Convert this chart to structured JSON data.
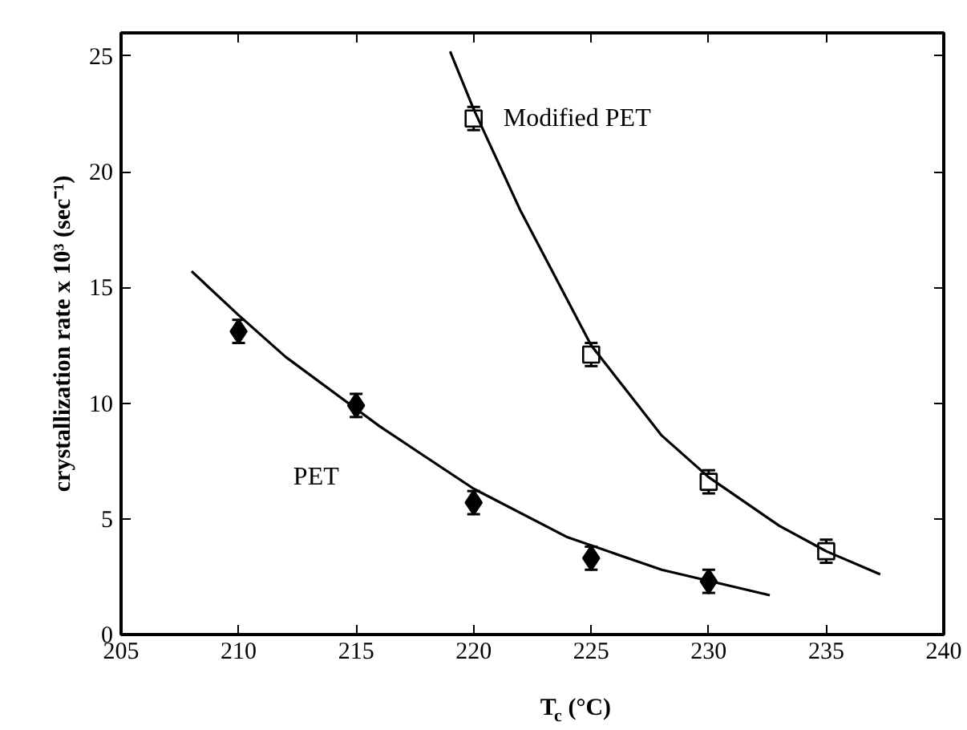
{
  "chart_data": {
    "type": "scatter",
    "xlabel": "T$_{c}$ (°C)",
    "ylabel": "crystallization rate x 10³ (sec⁻¹)",
    "xlim": [
      205,
      240
    ],
    "xticks": [
      205,
      210,
      215,
      220,
      225,
      230,
      235,
      240
    ],
    "ylim": [
      0,
      26
    ],
    "yticks": [
      0,
      5,
      10,
      15,
      20,
      25
    ],
    "grid": false,
    "legend": false,
    "series": [
      {
        "name": "PET",
        "marker": "diamond",
        "color": "#000000",
        "x": [
          210,
          215,
          220,
          225,
          230
        ],
        "values": [
          13.1,
          9.9,
          5.7,
          3.3,
          2.3
        ],
        "errors": [
          0.5,
          0.5,
          0.5,
          0.5,
          0.5
        ]
      },
      {
        "name": "Modified PET",
        "marker": "square",
        "color": "#000000",
        "x": [
          220,
          225,
          230,
          235
        ],
        "values": [
          22.3,
          12.1,
          6.6,
          3.6
        ],
        "errors": [
          0.5,
          0.5,
          0.5,
          0.5
        ]
      },
      {
        "type": "line",
        "color": "#000000",
        "x": [
          208,
          210,
          212,
          216,
          220,
          224,
          228,
          232.6
        ],
        "values": [
          15.7,
          13.8,
          12.0,
          9.0,
          6.3,
          4.2,
          2.8,
          1.7
        ]
      },
      {
        "type": "line",
        "color": "#000000",
        "x": [
          219,
          220,
          222,
          225,
          228,
          230,
          233,
          235,
          237.3
        ],
        "values": [
          25.2,
          22.7,
          18.3,
          12.5,
          8.6,
          6.8,
          4.7,
          3.6,
          2.6
        ]
      }
    ]
  }
}
